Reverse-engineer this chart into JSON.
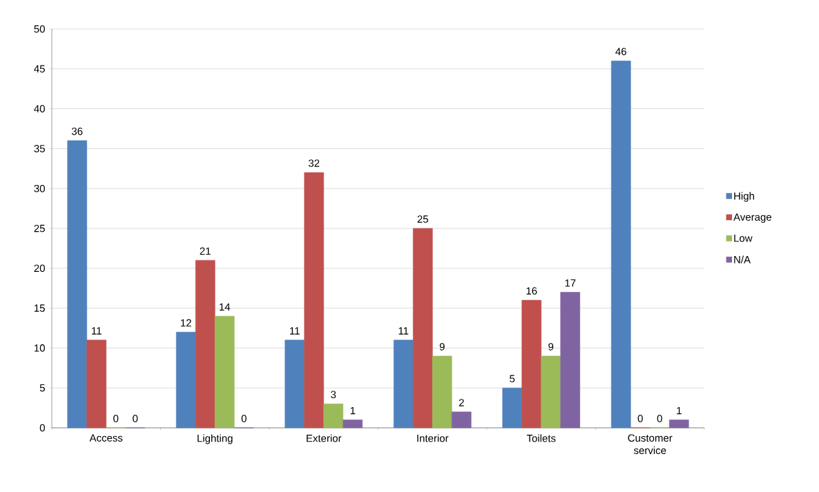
{
  "chart_data": {
    "type": "bar",
    "categories": [
      "Access",
      "Lighting",
      "Exterior",
      "Interior",
      "Toilets",
      "Customer service"
    ],
    "series": [
      {
        "name": "High",
        "color": "#4f81bd",
        "values": [
          36,
          12,
          11,
          11,
          5,
          46
        ]
      },
      {
        "name": "Average",
        "color": "#c0504d",
        "values": [
          11,
          21,
          32,
          25,
          16,
          0
        ]
      },
      {
        "name": "Low",
        "color": "#9bbb59",
        "values": [
          0,
          14,
          3,
          9,
          9,
          0
        ]
      },
      {
        "name": "N/A",
        "color": "#8064a2",
        "values": [
          0,
          0,
          1,
          2,
          17,
          1
        ]
      }
    ],
    "ylim": [
      0,
      50
    ],
    "yticks": [
      0,
      5,
      10,
      15,
      20,
      25,
      30,
      35,
      40,
      45,
      50
    ],
    "grid": "y",
    "legend": "right",
    "data_labels": true
  }
}
